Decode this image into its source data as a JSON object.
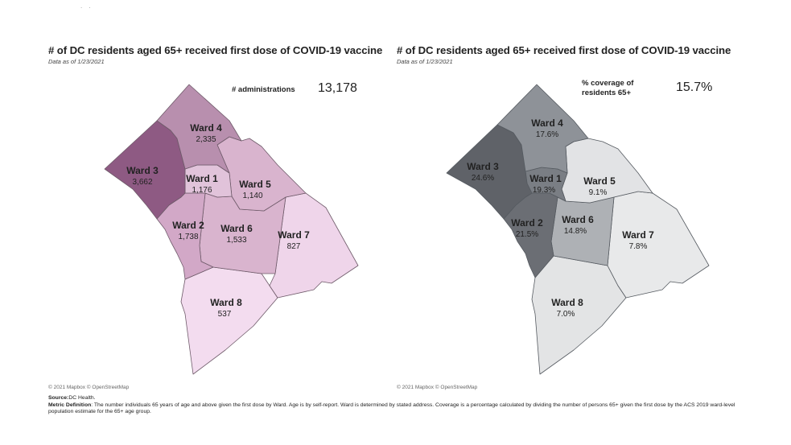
{
  "header_marks": ". .",
  "left_panel": {
    "title": "# of DC residents aged 65+ received first dose of COVID-19 vaccine",
    "subtitle": "Data as of 1/23/2021",
    "metric_label": "# administrations",
    "metric_value": "13,178",
    "attribution": "© 2021 Mapbox © OpenStreetMap",
    "wards": [
      {
        "name": "Ward 4",
        "value": "2,335",
        "color": "#b88fae"
      },
      {
        "name": "Ward 3",
        "value": "3,662",
        "color": "#8e5a83"
      },
      {
        "name": "Ward 1",
        "value": "1,176",
        "color": "#e1c3da"
      },
      {
        "name": "Ward 5",
        "value": "1,140",
        "color": "#d9b4ce"
      },
      {
        "name": "Ward 2",
        "value": "1,738",
        "color": "#d2a8c7"
      },
      {
        "name": "Ward 6",
        "value": "1,533",
        "color": "#d9b4ce"
      },
      {
        "name": "Ward 7",
        "value": "827",
        "color": "#efd5ea"
      },
      {
        "name": "Ward 8",
        "value": "537",
        "color": "#f3dcef"
      }
    ]
  },
  "right_panel": {
    "title": "# of DC residents aged 65+ received first dose of COVID-19 vaccine",
    "subtitle": "Data as of 1/23/2021",
    "metric_label_line1": "% coverage of",
    "metric_label_line2": "residents 65+",
    "metric_value": "15.7%",
    "attribution": "© 2021 Mapbox © OpenStreetMap",
    "wards": [
      {
        "name": "Ward 4",
        "value": "17.6%",
        "color": "#8e9298"
      },
      {
        "name": "Ward 3",
        "value": "24.6%",
        "color": "#5f6268"
      },
      {
        "name": "Ward 1",
        "value": "19.3%",
        "color": "#7a7e84"
      },
      {
        "name": "Ward 5",
        "value": "9.1%",
        "color": "#e2e3e5"
      },
      {
        "name": "Ward 2",
        "value": "21.5%",
        "color": "#6b6e74"
      },
      {
        "name": "Ward 6",
        "value": "14.8%",
        "color": "#aeb1b5"
      },
      {
        "name": "Ward 7",
        "value": "7.8%",
        "color": "#e8e9ea"
      },
      {
        "name": "Ward 8",
        "value": "7.0%",
        "color": "#e3e4e5"
      }
    ]
  },
  "footer": {
    "source_label": "Source:",
    "source_text": "DC Health.",
    "definition_label": "Metric Definition",
    "definition_text": ": The number individuals 65 years of age and above given the first dose by Ward. Age is by self-report. Ward is determined by stated address. Coverage is a percentage calculated by dividing the number of persons 65+ given the first dose by the ACS 2019 ward-level population estimate for the 65+ age group."
  }
}
